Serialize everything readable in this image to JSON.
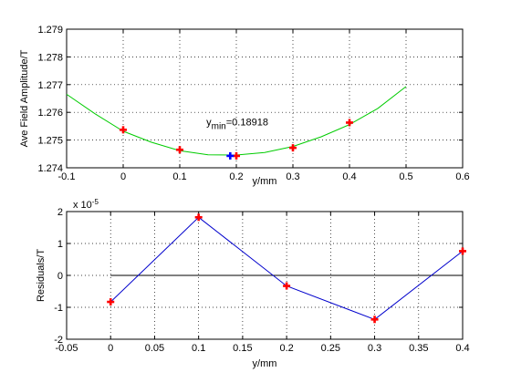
{
  "chart_data": [
    {
      "type": "line",
      "ylabel": "Ave Field Amplitude/T",
      "xlabel": "y/mm",
      "xlim": [
        -0.1,
        0.6
      ],
      "ylim": [
        1.274,
        1.279
      ],
      "xticks": [
        "-0.1",
        "0",
        "0.1",
        "0.2",
        "0.3",
        "0.4",
        "0.5",
        "0.6"
      ],
      "yticks": [
        "1.274",
        "1.275",
        "1.276",
        "1.277",
        "1.278",
        "1.279"
      ],
      "grid": true,
      "series": [
        {
          "style": "fit-curve",
          "color": "#00cc00",
          "x": [
            -0.1,
            -0.05,
            0,
            0.05,
            0.1,
            0.15,
            0.2,
            0.25,
            0.3,
            0.35,
            0.4,
            0.45,
            0.5
          ],
          "y": [
            1.27665,
            1.27595,
            1.27532,
            1.27492,
            1.27462,
            1.27447,
            1.27446,
            1.27455,
            1.27477,
            1.27512,
            1.27556,
            1.27614,
            1.27693
          ]
        },
        {
          "style": "markers",
          "color": "#ff0000",
          "x": [
            0,
            0.1,
            0.2,
            0.3,
            0.4
          ],
          "y": [
            1.27537,
            1.27465,
            1.27443,
            1.27472,
            1.27563
          ]
        },
        {
          "style": "minimum-marker",
          "color": "#0000ff",
          "x": [
            0.18918
          ],
          "y": [
            1.27443
          ]
        }
      ],
      "annotation": {
        "base": "y",
        "subscript": "min",
        "value": "=0.18918",
        "x": 0.147,
        "y": 1.27553
      }
    },
    {
      "type": "line",
      "ylabel": "Residuals/T",
      "xlabel": "y/mm",
      "xlim": [
        -0.05,
        0.4
      ],
      "ylim": [
        -2,
        2
      ],
      "xticks": [
        "-0.05",
        "0",
        "0.05",
        "0.1",
        "0.15",
        "0.2",
        "0.25",
        "0.3",
        "0.35",
        "0.4"
      ],
      "yticks": [
        "-2",
        "-1",
        "0",
        "1",
        "2"
      ],
      "y_exponent": "x 10",
      "y_exponent_power": "-5",
      "grid": true,
      "zero_line": {
        "x": [
          0,
          0.4
        ],
        "color": "#000000"
      },
      "series": [
        {
          "style": "line-markers",
          "color": "#0000cc",
          "marker_color": "#ff0000",
          "x": [
            0,
            0.1,
            0.2,
            0.3,
            0.4
          ],
          "y": [
            -0.83,
            1.82,
            -0.33,
            -1.38,
            0.76
          ]
        }
      ]
    }
  ]
}
